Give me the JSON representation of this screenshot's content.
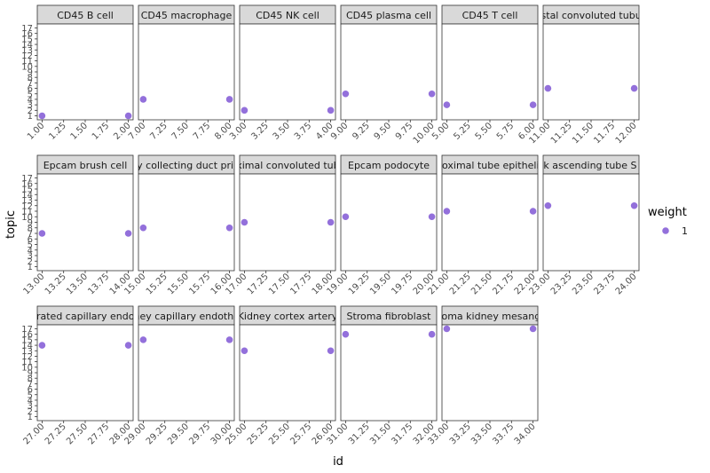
{
  "chart_data": {
    "type": "scatter",
    "xlabel": "id",
    "ylabel": "topic",
    "y_ticks": [
      "1",
      "2",
      "3",
      "4",
      "5",
      "6",
      "7",
      "8",
      "9",
      "10",
      "11",
      "12",
      "13",
      "14",
      "15",
      "16",
      "17"
    ],
    "ylim": [
      1,
      17
    ],
    "grid": false,
    "legend": {
      "title": "weight",
      "placement": "right",
      "entries": [
        {
          "label": "1",
          "color": "#9370DB"
        }
      ]
    },
    "point_color": "#9370DB",
    "panels": [
      {
        "label": "CD45    B cell",
        "x": [
          1,
          2
        ],
        "y": [
          1,
          1
        ],
        "xlim": [
          1,
          2
        ],
        "x_ticks": [
          "1.00",
          "1.25",
          "1.50",
          "1.75",
          "2.00"
        ]
      },
      {
        "label": "CD45    macrophage",
        "x": [
          7,
          8
        ],
        "y": [
          4,
          4
        ],
        "xlim": [
          7,
          8
        ],
        "x_ticks": [
          "7.00",
          "7.25",
          "7.50",
          "7.75",
          "8.00"
        ]
      },
      {
        "label": "CD45    NK cell",
        "x": [
          3,
          4
        ],
        "y": [
          2,
          2
        ],
        "xlim": [
          3,
          4
        ],
        "x_ticks": [
          "3.00",
          "3.25",
          "3.50",
          "3.75",
          "4.00"
        ]
      },
      {
        "label": "CD45    plasma cell",
        "x": [
          9,
          10
        ],
        "y": [
          5,
          5
        ],
        "xlim": [
          9,
          10
        ],
        "x_ticks": [
          "9.00",
          "9.25",
          "9.50",
          "9.75",
          "10.00"
        ]
      },
      {
        "label": "CD45    T cell",
        "x": [
          5,
          6
        ],
        "y": [
          3,
          3
        ],
        "xlim": [
          5,
          6
        ],
        "x_ticks": [
          "5.00",
          "5.25",
          "5.50",
          "5.75",
          "6.00"
        ]
      },
      {
        "label": "distal convoluted tubule",
        "x": [
          11,
          12
        ],
        "y": [
          6,
          6
        ],
        "xlim": [
          11,
          12
        ],
        "x_ticks": [
          "11.00",
          "11.25",
          "11.50",
          "11.75",
          "12.00"
        ]
      },
      {
        "label": "Epcam    brush cell",
        "x": [
          13,
          14
        ],
        "y": [
          7,
          7
        ],
        "xlim": [
          13,
          14
        ],
        "x_ticks": [
          "13.00",
          "13.25",
          "13.50",
          "13.75",
          "14.00"
        ]
      },
      {
        "label": "kidney collecting duct principal",
        "x": [
          15,
          16
        ],
        "y": [
          8,
          8
        ],
        "xlim": [
          15,
          16
        ],
        "x_ticks": [
          "15.00",
          "15.25",
          "15.50",
          "15.75",
          "16.00"
        ]
      },
      {
        "label": "proximal convoluted tubule",
        "x": [
          17,
          18
        ],
        "y": [
          9,
          9
        ],
        "xlim": [
          17,
          18
        ],
        "x_ticks": [
          "17.00",
          "17.25",
          "17.50",
          "17.75",
          "18.00"
        ]
      },
      {
        "label": "Epcam    podocyte",
        "x": [
          19,
          20
        ],
        "y": [
          10,
          10
        ],
        "xlim": [
          19,
          20
        ],
        "x_ticks": [
          "19.00",
          "19.25",
          "19.50",
          "19.75",
          "20.00"
        ]
      },
      {
        "label": "proximal tube epithelial",
        "x": [
          21,
          22
        ],
        "y": [
          11,
          11
        ],
        "xlim": [
          21,
          22
        ],
        "x_ticks": [
          "21.00",
          "21.25",
          "21.50",
          "21.75",
          "22.00"
        ]
      },
      {
        "label": "thick ascending tube S cell",
        "x": [
          23,
          24
        ],
        "y": [
          12,
          12
        ],
        "xlim": [
          23,
          24
        ],
        "x_ticks": [
          "23.00",
          "23.25",
          "23.50",
          "23.75",
          "24.00"
        ]
      },
      {
        "label": "fenestrated capillary endothelial",
        "x": [
          27,
          28
        ],
        "y": [
          14,
          14
        ],
        "xlim": [
          27,
          28
        ],
        "x_ticks": [
          "27.00",
          "27.25",
          "27.50",
          "27.75",
          "28.00"
        ]
      },
      {
        "label": "kidney capillary endothelial",
        "x": [
          29,
          30
        ],
        "y": [
          15,
          15
        ],
        "xlim": [
          29,
          30
        ],
        "x_ticks": [
          "29.00",
          "29.25",
          "29.50",
          "29.75",
          "30.00"
        ]
      },
      {
        "label": "Kidney cortex artery",
        "x": [
          25,
          26
        ],
        "y": [
          13,
          13
        ],
        "xlim": [
          25,
          26
        ],
        "x_ticks": [
          "25.00",
          "25.25",
          "25.50",
          "25.75",
          "26.00"
        ]
      },
      {
        "label": "Stroma    fibroblast",
        "x": [
          31,
          32
        ],
        "y": [
          16,
          16
        ],
        "xlim": [
          31,
          32
        ],
        "x_ticks": [
          "31.00",
          "31.25",
          "31.50",
          "31.75",
          "32.00"
        ]
      },
      {
        "label": "Stroma    kidney mesangial",
        "x": [
          33,
          34
        ],
        "y": [
          17,
          17
        ],
        "xlim": [
          33,
          34
        ],
        "x_ticks": [
          "33.00",
          "33.25",
          "33.50",
          "33.75",
          "34.00"
        ]
      }
    ]
  }
}
